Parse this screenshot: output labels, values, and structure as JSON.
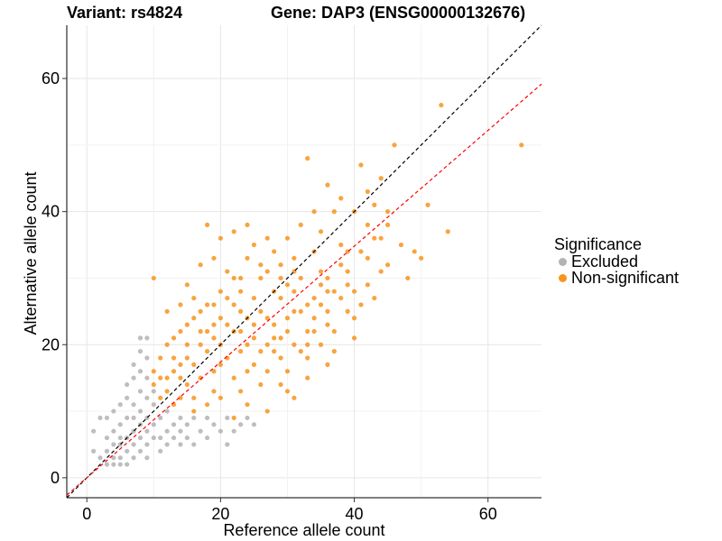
{
  "titles": {
    "variant": "Variant: rs4824",
    "gene": "Gene: DAP3 (ENSG00000132676)"
  },
  "legend": {
    "title": "Significance",
    "items": [
      {
        "label": "Excluded",
        "color": "#b3b3b3"
      },
      {
        "label": "Non-significant",
        "color": "#f7941d"
      }
    ]
  },
  "chart_data": {
    "type": "scatter",
    "title": "",
    "xlabel": "Reference allele count",
    "ylabel": "Alternative allele count",
    "xlim": [
      -3,
      68
    ],
    "ylim": [
      -3,
      68
    ],
    "x_ticks": [
      0,
      20,
      40,
      60
    ],
    "y_ticks": [
      0,
      20,
      40,
      60
    ],
    "grid": true,
    "legend_position": "right",
    "reference_lines": [
      {
        "name": "y = x",
        "slope": 1,
        "intercept": 0,
        "color": "#000000",
        "style": "dashed"
      },
      {
        "name": "fitted",
        "slope": 0.87,
        "intercept": 0,
        "color": "#ff0000",
        "style": "dashed"
      }
    ],
    "series": [
      {
        "name": "Excluded",
        "color": "#b3b3b3",
        "points": [
          [
            1,
            4
          ],
          [
            1,
            7
          ],
          [
            2,
            3
          ],
          [
            2,
            9
          ],
          [
            3,
            2
          ],
          [
            3,
            4
          ],
          [
            3,
            6
          ],
          [
            3,
            9
          ],
          [
            4,
            2
          ],
          [
            4,
            3
          ],
          [
            4,
            5
          ],
          [
            4,
            7
          ],
          [
            4,
            10
          ],
          [
            5,
            2
          ],
          [
            5,
            3
          ],
          [
            5,
            5
          ],
          [
            5,
            6
          ],
          [
            5,
            8
          ],
          [
            5,
            11
          ],
          [
            6,
            2
          ],
          [
            6,
            4
          ],
          [
            6,
            6
          ],
          [
            6,
            9
          ],
          [
            6,
            12
          ],
          [
            6,
            14
          ],
          [
            7,
            3
          ],
          [
            7,
            5
          ],
          [
            7,
            7
          ],
          [
            7,
            9
          ],
          [
            7,
            11
          ],
          [
            7,
            15
          ],
          [
            7,
            17
          ],
          [
            8,
            4
          ],
          [
            8,
            6
          ],
          [
            8,
            8
          ],
          [
            8,
            10
          ],
          [
            8,
            13
          ],
          [
            8,
            16
          ],
          [
            8,
            19
          ],
          [
            8,
            21
          ],
          [
            9,
            3
          ],
          [
            9,
            5
          ],
          [
            9,
            7
          ],
          [
            9,
            9
          ],
          [
            9,
            12
          ],
          [
            9,
            15
          ],
          [
            9,
            18
          ],
          [
            9,
            21
          ],
          [
            10,
            6
          ],
          [
            10,
            8
          ],
          [
            10,
            11
          ],
          [
            10,
            13
          ],
          [
            11,
            4
          ],
          [
            11,
            6
          ],
          [
            11,
            9
          ],
          [
            12,
            5
          ],
          [
            12,
            7
          ],
          [
            12,
            10
          ],
          [
            13,
            6
          ],
          [
            13,
            8
          ],
          [
            14,
            5
          ],
          [
            14,
            7
          ],
          [
            14,
            9
          ],
          [
            15,
            6
          ],
          [
            15,
            8
          ],
          [
            16,
            5
          ],
          [
            16,
            9
          ],
          [
            17,
            7
          ],
          [
            18,
            6
          ],
          [
            18,
            9
          ],
          [
            19,
            8
          ],
          [
            20,
            7
          ],
          [
            21,
            9
          ],
          [
            22,
            7
          ],
          [
            23,
            8
          ],
          [
            24,
            9
          ],
          [
            25,
            8
          ],
          [
            21,
            5
          ]
        ]
      },
      {
        "name": "Non-significant",
        "color": "#f7941d",
        "points": [
          [
            10,
            30
          ],
          [
            12,
            25
          ],
          [
            15,
            29
          ],
          [
            18,
            38
          ],
          [
            20,
            36
          ],
          [
            22,
            37
          ],
          [
            23,
            28
          ],
          [
            24,
            38
          ],
          [
            25,
            35
          ],
          [
            27,
            36
          ],
          [
            28,
            34
          ],
          [
            30,
            36
          ],
          [
            31,
            33
          ],
          [
            32,
            38
          ],
          [
            33,
            48
          ],
          [
            34,
            40
          ],
          [
            35,
            37
          ],
          [
            36,
            44
          ],
          [
            37,
            40
          ],
          [
            38,
            42
          ],
          [
            39,
            34
          ],
          [
            40,
            40
          ],
          [
            41,
            47
          ],
          [
            42,
            43
          ],
          [
            43,
            41
          ],
          [
            44,
            45
          ],
          [
            45,
            38
          ],
          [
            46,
            50
          ],
          [
            47,
            35
          ],
          [
            48,
            30
          ],
          [
            49,
            34
          ],
          [
            50,
            33
          ],
          [
            51,
            41
          ],
          [
            53,
            56
          ],
          [
            54,
            37
          ],
          [
            65,
            50
          ],
          [
            40,
            21
          ],
          [
            41,
            26
          ],
          [
            42,
            29
          ],
          [
            44,
            31
          ],
          [
            37,
            22
          ],
          [
            36,
            17
          ],
          [
            31,
            12
          ],
          [
            29,
            14
          ],
          [
            27,
            10
          ],
          [
            24,
            11
          ],
          [
            22,
            9
          ],
          [
            30,
            16
          ],
          [
            33,
            18
          ],
          [
            34,
            24
          ],
          [
            35,
            31
          ],
          [
            38,
            35
          ],
          [
            39,
            29
          ],
          [
            28,
            23
          ],
          [
            26,
            30
          ],
          [
            25,
            27
          ],
          [
            21,
            31
          ],
          [
            19,
            33
          ],
          [
            17,
            32
          ],
          [
            16,
            27
          ],
          [
            14,
            26
          ],
          [
            13,
            21
          ],
          [
            11,
            18
          ],
          [
            12,
            15
          ],
          [
            10,
            14
          ],
          [
            11,
            12
          ],
          [
            13,
            11
          ],
          [
            16,
            10
          ],
          [
            19,
            13
          ],
          [
            20,
            17
          ],
          [
            23,
            22
          ],
          [
            24,
            20
          ],
          [
            26,
            19
          ],
          [
            28,
            19
          ],
          [
            30,
            22
          ],
          [
            32,
            25
          ],
          [
            34,
            27
          ],
          [
            36,
            30
          ],
          [
            38,
            32
          ],
          [
            40,
            28
          ],
          [
            39,
            25
          ],
          [
            43,
            27
          ],
          [
            45,
            32
          ],
          [
            44,
            36
          ],
          [
            42,
            38
          ],
          [
            36,
            23
          ],
          [
            33,
            20
          ],
          [
            29,
            27
          ],
          [
            27,
            24
          ],
          [
            25,
            23
          ],
          [
            22,
            26
          ],
          [
            20,
            24
          ],
          [
            18,
            22
          ],
          [
            15,
            20
          ],
          [
            14,
            17
          ],
          [
            15,
            14
          ],
          [
            17,
            15
          ],
          [
            19,
            16
          ],
          [
            21,
            18
          ],
          [
            23,
            19
          ],
          [
            25,
            17
          ],
          [
            27,
            16
          ],
          [
            29,
            18
          ],
          [
            31,
            20
          ],
          [
            33,
            22
          ],
          [
            35,
            26
          ],
          [
            37,
            28
          ],
          [
            32,
            30
          ],
          [
            30,
            29
          ],
          [
            28,
            28
          ],
          [
            26,
            25
          ],
          [
            24,
            24
          ],
          [
            22,
            22
          ],
          [
            20,
            20
          ],
          [
            18,
            19
          ],
          [
            16,
            17
          ],
          [
            14,
            15
          ],
          [
            12,
            13
          ],
          [
            13,
            18
          ],
          [
            15,
            23
          ],
          [
            17,
            25
          ],
          [
            19,
            26
          ],
          [
            21,
            27
          ],
          [
            23,
            30
          ],
          [
            26,
            32
          ],
          [
            29,
            32
          ],
          [
            31,
            28
          ],
          [
            34,
            34
          ],
          [
            35,
            20
          ],
          [
            37,
            19
          ],
          [
            33,
            15
          ],
          [
            30,
            13
          ],
          [
            26,
            14
          ],
          [
            23,
            13
          ],
          [
            20,
            12
          ],
          [
            18,
            11
          ],
          [
            16,
            12
          ],
          [
            14,
            12
          ],
          [
            17,
            20
          ],
          [
            19,
            21
          ],
          [
            22,
            15
          ],
          [
            24,
            16
          ],
          [
            28,
            21
          ],
          [
            30,
            24
          ],
          [
            32,
            19
          ],
          [
            34,
            22
          ],
          [
            36,
            25
          ],
          [
            38,
            27
          ],
          [
            40,
            24
          ],
          [
            42,
            33
          ],
          [
            35,
            29
          ],
          [
            31,
            25
          ],
          [
            29,
            21
          ],
          [
            27,
            20
          ],
          [
            25,
            21
          ],
          [
            23,
            25
          ],
          [
            21,
            23
          ],
          [
            19,
            23
          ],
          [
            17,
            22
          ],
          [
            15,
            18
          ],
          [
            13,
            16
          ],
          [
            11,
            15
          ],
          [
            10,
            16
          ],
          [
            12,
            20
          ],
          [
            14,
            22
          ],
          [
            16,
            24
          ],
          [
            18,
            26
          ],
          [
            20,
            28
          ],
          [
            22,
            30
          ],
          [
            24,
            33
          ],
          [
            27,
            31
          ],
          [
            29,
            30
          ],
          [
            31,
            31
          ],
          [
            33,
            26
          ],
          [
            36,
            28
          ],
          [
            39,
            31
          ],
          [
            41,
            34
          ],
          [
            43,
            36
          ],
          [
            45,
            40
          ]
        ]
      }
    ]
  }
}
